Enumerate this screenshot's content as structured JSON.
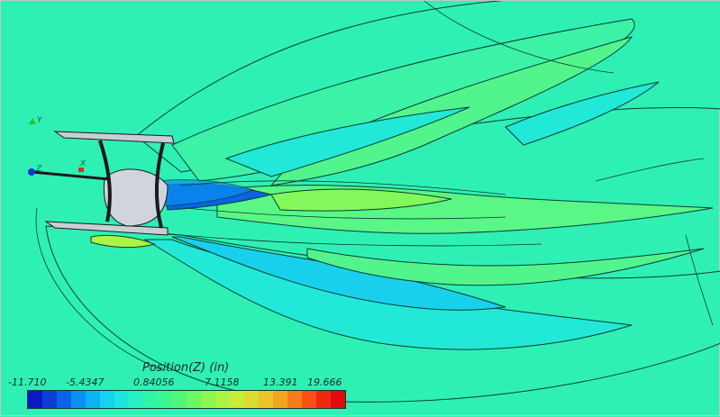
{
  "legend": {
    "title": "Position(Z) (in)",
    "ticks": [
      "-11.710",
      "-5.4347",
      "0.84056",
      "7.1158",
      "13.391",
      "19.666"
    ]
  },
  "axes": {
    "y": "Y",
    "z": "Z",
    "x": "X"
  },
  "colors": {
    "background": "#2ff0b4",
    "colorbar": [
      "#0a18c8",
      "#0a3ed6",
      "#0a64e6",
      "#0a90f0",
      "#0ab4f4",
      "#14d2f0",
      "#1ee6dc",
      "#28f0c0",
      "#30f4a8",
      "#3cf690",
      "#50f878",
      "#6cf860",
      "#8cf850",
      "#acf444",
      "#c8ec38",
      "#dcdc30",
      "#ecc428",
      "#f4a420",
      "#f87c18",
      "#f85014",
      "#f02810",
      "#e00c0c"
    ]
  }
}
